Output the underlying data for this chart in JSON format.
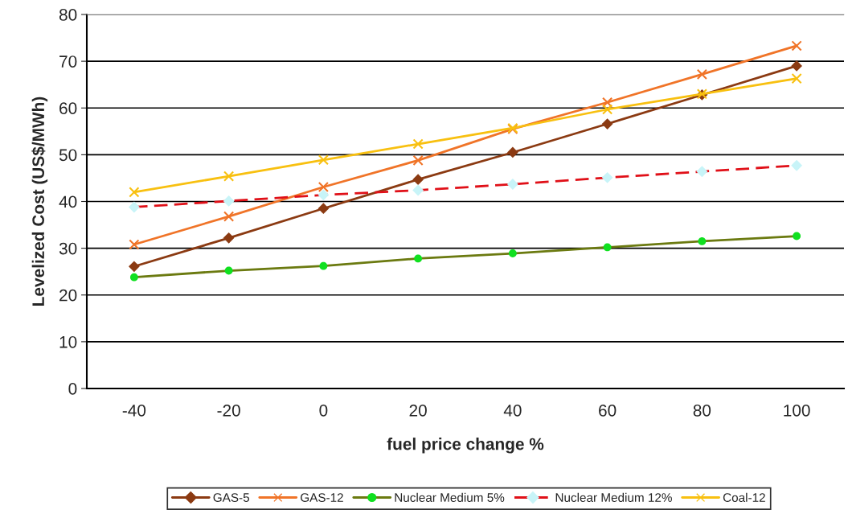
{
  "chart_data": {
    "type": "line",
    "xlabel": "fuel price change %",
    "ylabel": "Levelized Cost (US$/MWh)",
    "categories": [
      "-40",
      "-20",
      "0",
      "20",
      "40",
      "60",
      "80",
      "100"
    ],
    "series": [
      {
        "name": "GAS-5",
        "color": "#8b3a12",
        "marker": "diamond",
        "line_style": "solid",
        "values": [
          26.1,
          32.2,
          38.5,
          44.7,
          50.5,
          56.6,
          62.8,
          69.0
        ]
      },
      {
        "name": "GAS-12",
        "color": "#f07428",
        "marker": "cross",
        "line_style": "solid",
        "values": [
          30.8,
          36.8,
          43.1,
          48.8,
          55.5,
          61.2,
          67.2,
          73.3
        ]
      },
      {
        "name": "Nuclear Medium 5%",
        "color": "#6b7a10",
        "colors": [
          "#10e020",
          "#10e020",
          "#10e020",
          "#10e020",
          "#10e020",
          "#10e020",
          "#10e020",
          "#10e020"
        ],
        "marker": "circle",
        "line_style": "solid",
        "values": [
          23.8,
          25.2,
          26.2,
          27.8,
          28.9,
          30.2,
          31.5,
          32.6
        ]
      },
      {
        "name": "Nuclear Medium 12%",
        "color": "#e01018",
        "colors": [
          "#c8f4f8",
          "#c8f4f8",
          "#c8f4f8",
          "#c8f4f8",
          "#c8f4f8",
          "#c8f4f8",
          "#c8f4f8",
          "#c8f4f8"
        ],
        "marker": "diamond",
        "line_style": "dashed",
        "values": [
          38.8,
          40.1,
          41.4,
          42.4,
          43.7,
          45.1,
          46.4,
          47.7
        ]
      },
      {
        "name": "Coal-12",
        "color": "#f8c010",
        "marker": "cross",
        "line_style": "solid",
        "values": [
          42.0,
          45.4,
          48.9,
          52.3,
          55.7,
          59.7,
          63.0,
          66.3
        ]
      }
    ],
    "ylim": [
      0,
      80
    ],
    "yticks": [
      0,
      10,
      20,
      30,
      40,
      50,
      60,
      70,
      80
    ],
    "grid": "y",
    "legend": "bottom"
  }
}
